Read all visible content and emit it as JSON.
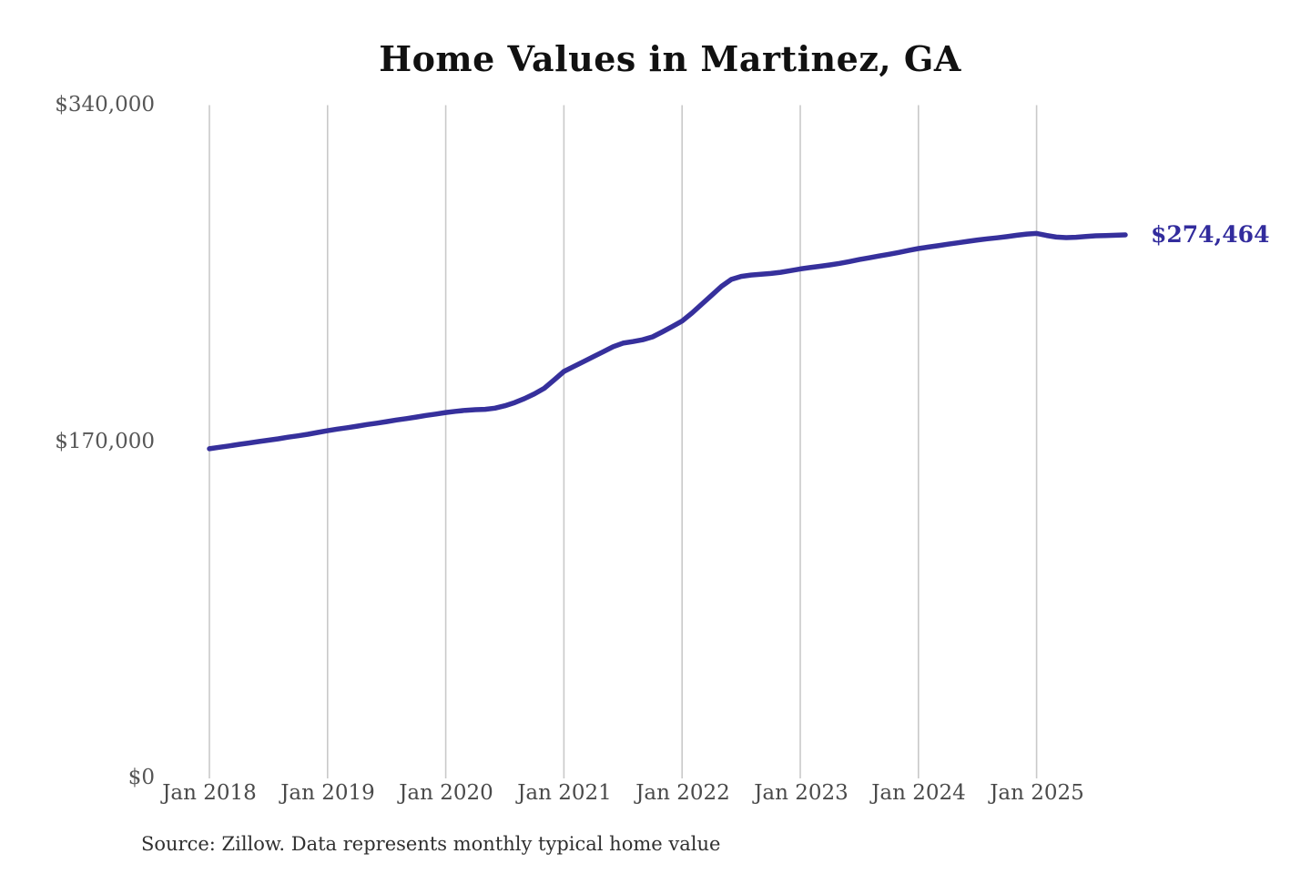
{
  "chart": {
    "title": "Home Values in Martinez, GA",
    "end_label": "$274,464",
    "source_note": "Source: Zillow. Data represents monthly typical home value",
    "colors": {
      "line": "#36309c",
      "end_label": "#322c9d",
      "grid": "#c9c9c9",
      "title": "#111111",
      "axis_text": "#4f4f4f",
      "background": "#ffffff"
    }
  },
  "chart_data": {
    "type": "line",
    "title": "Home Values in Martinez, GA",
    "xlabel": "",
    "ylabel": "",
    "x_start": "Jan 2018",
    "x_end": "Oct 2025",
    "frequency": "monthly",
    "x_tick_labels": [
      "Jan 2018",
      "Jan 2019",
      "Jan 2020",
      "Jan 2021",
      "Jan 2022",
      "Jan 2023",
      "Jan 2024",
      "Jan 2025"
    ],
    "y_ticks": [
      {
        "label": "$340,000",
        "value": 340000
      },
      {
        "label": "$170,000",
        "value": 170000
      },
      {
        "label": "$0",
        "value": 0
      }
    ],
    "ylim": [
      0,
      340000
    ],
    "grid": "vertical-only",
    "legend_position": "none",
    "annotation": {
      "text": "$274,464",
      "value": 274464,
      "position": "line-end"
    },
    "series": [
      {
        "name": "Monthly typical home value",
        "values": [
          166500,
          167200,
          167900,
          168700,
          169400,
          170100,
          170800,
          171500,
          172300,
          173000,
          173800,
          174700,
          175600,
          176400,
          177100,
          177900,
          178700,
          179400,
          180200,
          181000,
          181700,
          182500,
          183300,
          184000,
          184800,
          185400,
          185900,
          186200,
          186400,
          187000,
          188200,
          189800,
          191800,
          194200,
          197000,
          201200,
          205500,
          208000,
          210500,
          213000,
          215500,
          218000,
          219800,
          220600,
          221500,
          223000,
          225500,
          228200,
          231000,
          235000,
          239500,
          244000,
          248500,
          252000,
          253500,
          254200,
          254600,
          255000,
          255600,
          256400,
          257300,
          258000,
          258600,
          259300,
          260100,
          261000,
          262000,
          262900,
          263800,
          264700,
          265600,
          266600,
          267600,
          268300,
          269000,
          269800,
          270500,
          271200,
          271900,
          272500,
          273000,
          273600,
          274300,
          274900,
          275200,
          274200,
          273400,
          273100,
          273300,
          273700,
          274000,
          274100,
          274300,
          274464
        ]
      }
    ],
    "final_value": 274464,
    "source": "Source: Zillow. Data represents monthly typical home value"
  }
}
